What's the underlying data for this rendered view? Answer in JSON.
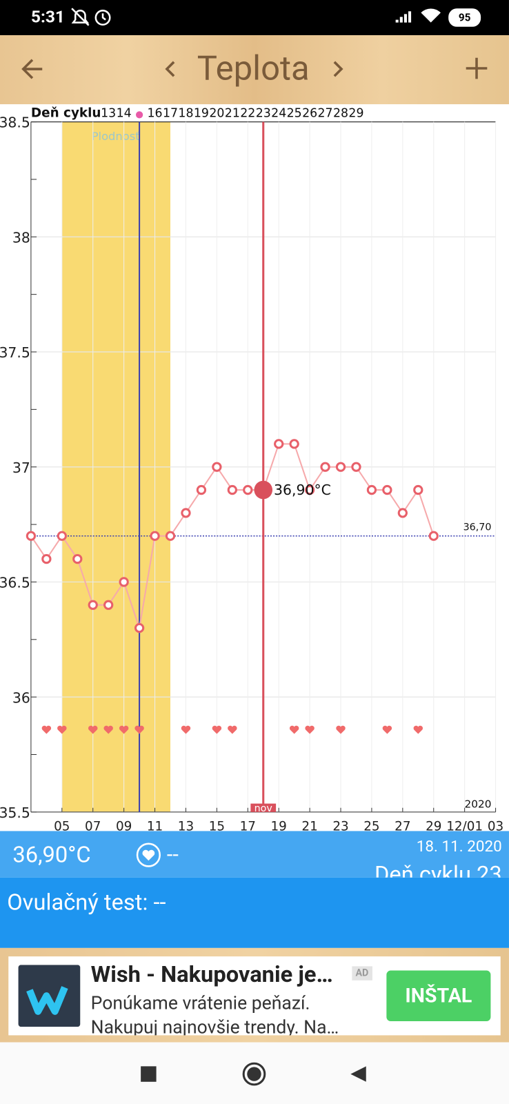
{
  "status": {
    "time": "5:31",
    "battery": "95"
  },
  "header": {
    "title": "Teplota"
  },
  "chart_data": {
    "type": "line",
    "cycle_label": "Deň cyklu",
    "categories": [
      null,
      null,
      "05",
      null,
      "07",
      null,
      "09",
      null,
      "11",
      null,
      "13",
      null,
      "15",
      null,
      "17",
      null,
      "19",
      null,
      "21",
      null,
      "23",
      null,
      "25",
      null,
      "27",
      null,
      "29",
      null,
      "12/01",
      null,
      "03"
    ],
    "cycle_days": [
      null,
      null,
      null,
      null,
      null,
      "13",
      "14",
      null,
      "16",
      "17",
      "18",
      "19",
      "20",
      "21",
      "22",
      "23",
      "24",
      "25",
      "26",
      "27",
      "28",
      "29",
      null,
      null,
      null,
      null,
      null,
      null,
      null,
      null,
      null
    ],
    "values": [
      36.7,
      36.6,
      36.7,
      36.6,
      36.4,
      36.4,
      36.5,
      36.3,
      36.7,
      36.7,
      36.8,
      36.9,
      37,
      36.9,
      36.9,
      36.9,
      37.1,
      37.1,
      36.9,
      37,
      37,
      37,
      36.9,
      36.9,
      36.8,
      36.9,
      36.7,
      null,
      null,
      null,
      null
    ],
    "color": "#e8606a",
    "line_color": "#f6a9ab",
    "hearts": [
      false,
      true,
      true,
      false,
      true,
      true,
      true,
      true,
      false,
      false,
      true,
      false,
      true,
      true,
      false,
      false,
      false,
      true,
      true,
      false,
      true,
      false,
      false,
      true,
      false,
      true,
      false,
      false,
      false,
      false,
      false
    ],
    "fertile": [
      false,
      false,
      true,
      true,
      true,
      true,
      true,
      true,
      true,
      true,
      false,
      false,
      false,
      false,
      false,
      false,
      false,
      false,
      false,
      false,
      false,
      false,
      false,
      false,
      false,
      false,
      false,
      false,
      false,
      false,
      false
    ],
    "fertile_label": "Plodnosť",
    "fertile_color": "#f9da72",
    "ovulation_index": 7,
    "ovulation_color": "#3a3fb0",
    "selected_index": 15,
    "selected_label": "nov",
    "selected_color": "#d9505c",
    "selected_value": {
      "value": 36.9,
      "label": "36,90°C"
    },
    "reference": {
      "value": 36.7,
      "label": "36,70"
    },
    "year_label": "2020",
    "ylim": [
      35.5,
      38.5
    ],
    "yticks": [
      38.5,
      38,
      37.5,
      37,
      36.5,
      36,
      35.5
    ],
    "yminor": [
      38.25,
      37.75,
      37.25,
      36.75,
      36.25,
      35.75
    ],
    "grid": true
  },
  "info": {
    "temperature": "36,90°C",
    "heart": "--",
    "date": "18. 11. 2020",
    "cycle_day": "Deň cyklu 23"
  },
  "ovulation": {
    "text": "Ovulačný test: --"
  },
  "ad": {
    "title": "Wish - Nakupovanie je…",
    "badge": "AD",
    "line1": "Ponúkame vrátenie peňazí.",
    "line2": "Nakupuj najnovšie trendy. Na…",
    "button": "INŠTAL"
  }
}
